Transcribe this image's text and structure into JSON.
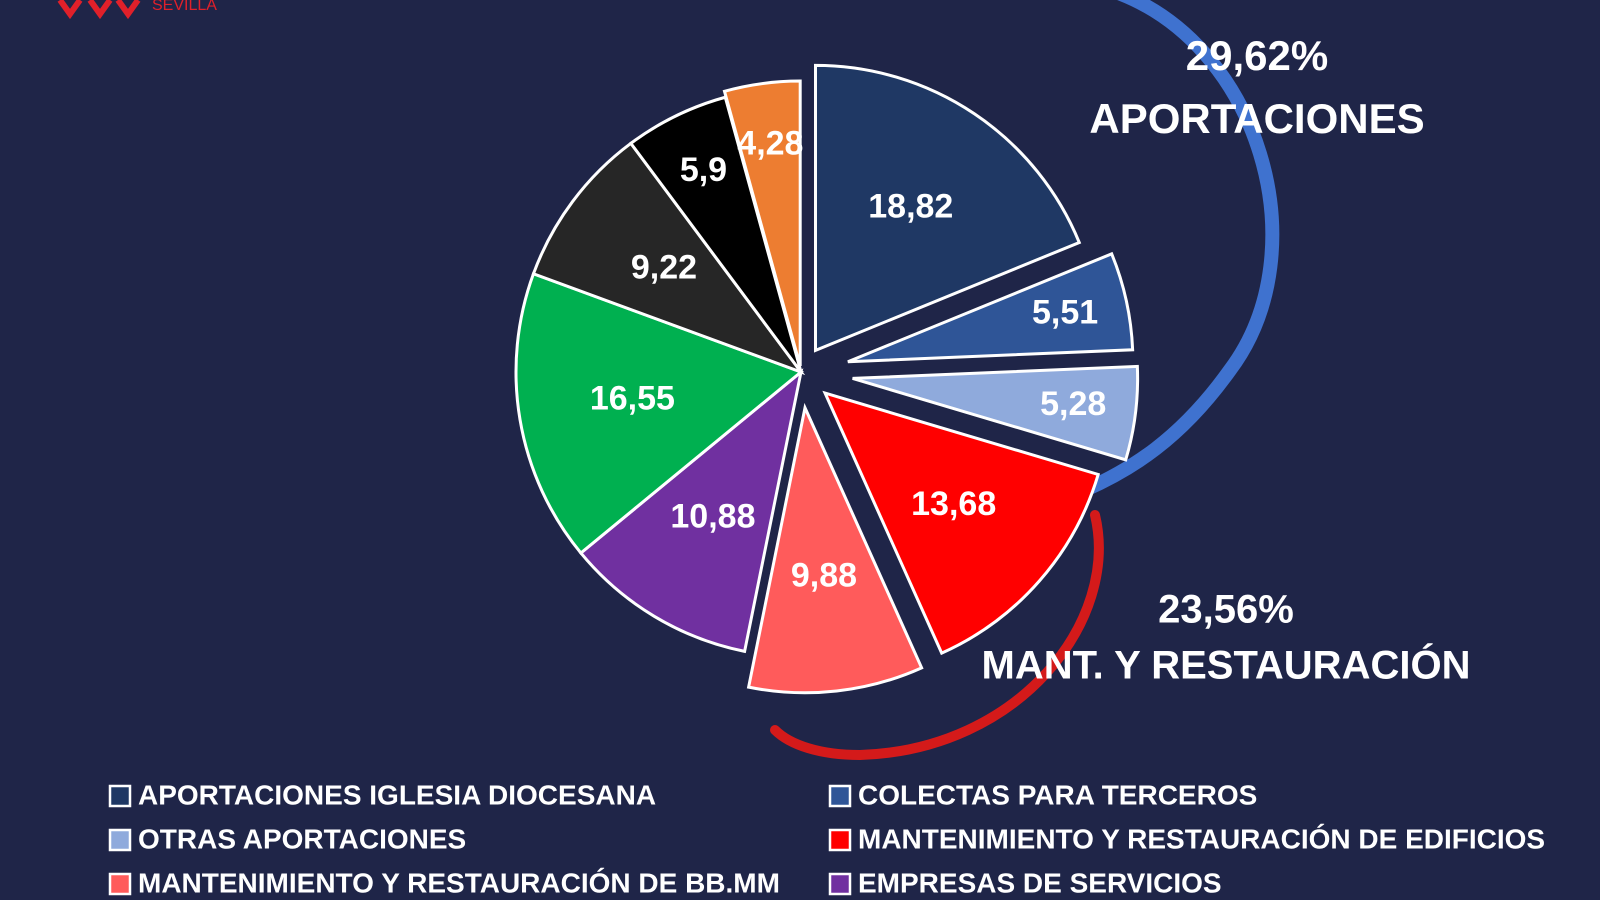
{
  "logo_text": "SEVILLA",
  "chart_data": {
    "type": "pie",
    "categories": [
      "APORTACIONES IGLESIA DIOCESANA",
      "COLECTAS PARA TERCEROS",
      "OTRAS APORTACIONES",
      "MANTENIMIENTO Y RESTAURACIÓN DE EDIFICIOS",
      "MANTENIMIENTO Y RESTAURACIÓN DE BB.MM",
      "EMPRESAS DE SERVICIOS",
      null,
      null,
      null,
      null
    ],
    "values": [
      18.82,
      5.51,
      5.28,
      13.68,
      9.88,
      10.88,
      16.55,
      9.22,
      5.9,
      4.28
    ],
    "value_labels": [
      "18,82",
      "5,51",
      "5,28",
      "13,68",
      "9,88",
      "10,88",
      "16,55",
      "9,22",
      "5,9",
      "4,28"
    ],
    "colors": [
      "#1f3864",
      "#2f5597",
      "#8faadc",
      "#ff0000",
      "#ff5b5b",
      "#7030a0",
      "#00b050",
      "#262626",
      "#000000",
      "#ed7d31"
    ],
    "annotations": [
      {
        "value": "29,62%",
        "label": "APORTACIONES"
      },
      {
        "value": "23,56%",
        "label": "MANT. Y RESTAURACIÓN"
      }
    ]
  }
}
